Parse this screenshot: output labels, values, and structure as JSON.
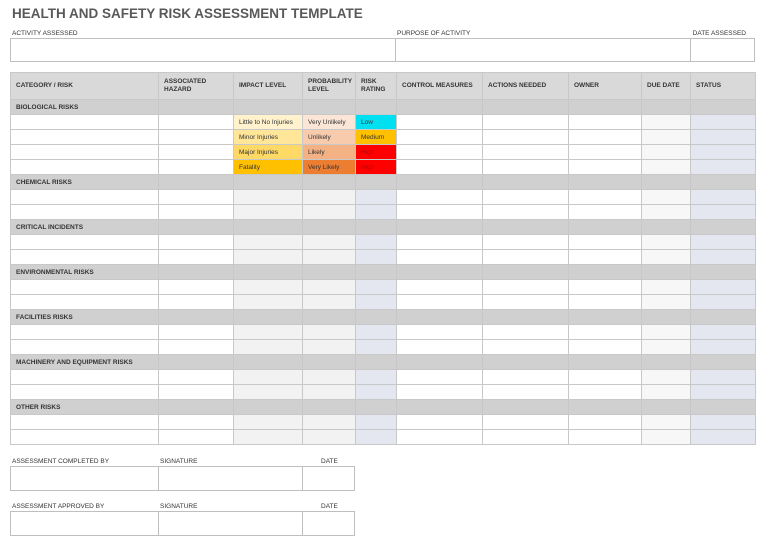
{
  "header": {
    "title": "HEALTH AND SAFETY RISK ASSESSMENT TEMPLATE"
  },
  "fields": {
    "activity": "ACTIVITY ASSESSED",
    "purpose": "PURPOSE OF ACTIVITY",
    "date": "DATE ASSESSED"
  },
  "table": {
    "columns": [
      "CATEGORY / RISK",
      "ASSOCIATED HAZARD",
      "IMPACT LEVEL",
      "PROBABILITY LEVEL",
      "RISK RATING",
      "CONTROL MEASURES",
      "ACTIONS NEEDED",
      "OWNER",
      "DUE DATE",
      "STATUS"
    ],
    "groups": [
      {
        "name": "BIOLOGICAL RISKS",
        "examples": [
          {
            "impact": "Little to No Injuries",
            "impact_color": "#fff2cc",
            "probability": "Very Unlikely",
            "probability_color": "#fbe5d6",
            "rating": "Low",
            "rating_color": "#00e0f0",
            "rating_text_color": "#333333"
          },
          {
            "impact": "Minor Injuries",
            "impact_color": "#ffe699",
            "probability": "Unlikely",
            "probability_color": "#f8cbad",
            "rating": "Medium",
            "rating_color": "#ffc000",
            "rating_text_color": "#333333"
          },
          {
            "impact": "Major Injuries",
            "impact_color": "#ffd966",
            "probability": "Likely",
            "probability_color": "#f4b183",
            "rating": "High",
            "rating_color": "#ff0000",
            "rating_text_color": "#c00000"
          },
          {
            "impact": "Fatality",
            "impact_color": "#ffc000",
            "probability": "Very Likely",
            "probability_color": "#ed7d31",
            "rating": "High",
            "rating_color": "#ff0000",
            "rating_text_color": "#c00000"
          }
        ]
      },
      {
        "name": "CHEMICAL RISKS"
      },
      {
        "name": "CRITICAL INCIDENTS"
      },
      {
        "name": "ENVIRONMENTAL RISKS"
      },
      {
        "name": "FACILITIES RISKS"
      },
      {
        "name": "MACHINERY AND EQUIPMENT RISKS"
      },
      {
        "name": "OTHER RISKS"
      }
    ]
  },
  "signoff": [
    {
      "label": "ASSESSMENT COMPLETED BY",
      "signature": "SIGNATURE",
      "date": "DATE"
    },
    {
      "label": "ASSESSMENT APPROVED BY",
      "signature": "SIGNATURE",
      "date": "DATE"
    }
  ]
}
